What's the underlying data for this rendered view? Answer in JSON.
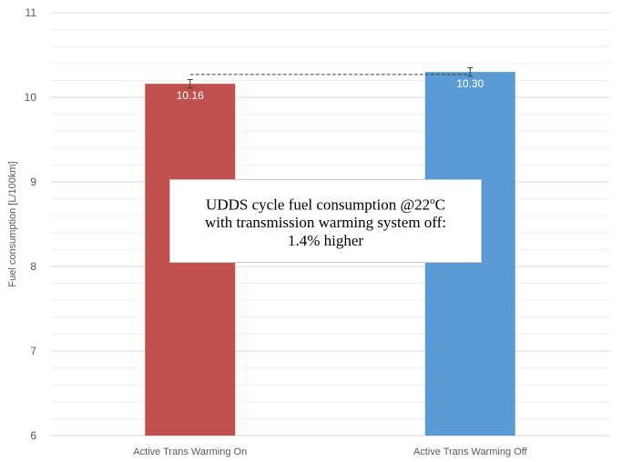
{
  "chart_data": {
    "type": "bar",
    "categories": [
      "Active Trans Warming On",
      "Active Trans Warming Off"
    ],
    "values": [
      10.16,
      10.3
    ],
    "data_labels": [
      "10.16",
      "10.30"
    ],
    "error_bars": [
      0.05,
      0.05
    ],
    "colors": [
      "#c0504d",
      "#5b9bd5"
    ],
    "ylabel": "Fuel consumption [L/100km]",
    "ylim": [
      6,
      11
    ],
    "yticks": [
      "6",
      "7",
      "8",
      "9",
      "10",
      "11"
    ],
    "grid": true,
    "reference_line": 10.27,
    "annotation": {
      "line1": "UDDS cycle fuel consumption @22",
      "degree": "o",
      "unit": "C",
      "line2": "with transmission warming system off:",
      "line3": "1.4% higher"
    }
  }
}
